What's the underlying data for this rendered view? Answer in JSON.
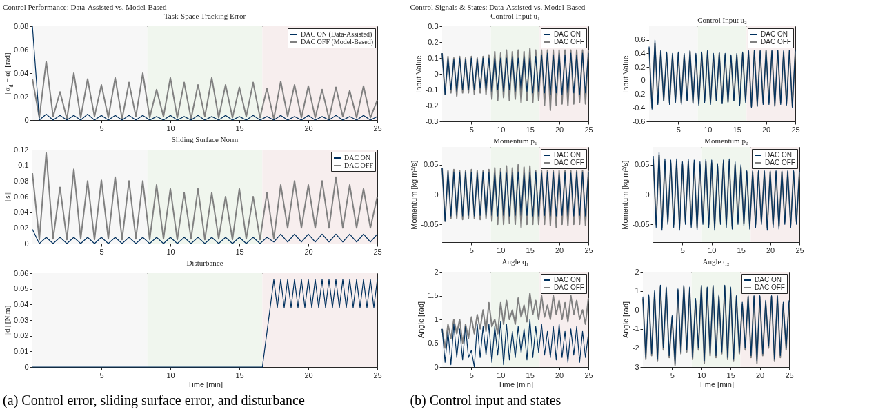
{
  "chart_data": [
    {
      "type": "line",
      "title": "Task-Space Tracking Error",
      "ylabel": "||α$_{d}$ − α|| [rad]",
      "annotations": [
        "Control Performance: Data-Assisted vs. Model-Based",
        "(a) Control error, sliding surface error, and disturbance"
      ],
      "x": [
        0,
        0.5,
        1,
        1.5,
        2,
        2.5,
        3,
        3.5,
        4,
        4.5,
        5,
        5.5,
        6,
        6.5,
        7,
        7.5,
        8,
        8.5,
        9,
        9.5,
        10,
        10.5,
        11,
        11.5,
        12,
        12.5,
        13,
        13.5,
        14,
        14.5,
        15,
        15.5,
        16,
        16.5,
        17,
        17.5,
        18,
        18.5,
        19,
        19.5,
        20,
        20.5,
        21,
        21.5,
        22,
        22.5,
        23,
        23.5,
        24,
        24.5,
        25
      ],
      "xlim": [
        0,
        25
      ],
      "xticks": [
        5,
        10,
        15,
        20,
        25
      ],
      "ylim": [
        0,
        0.08
      ],
      "yticks": [
        0,
        0.02,
        0.04,
        0.06,
        0.08
      ],
      "legend": "top right",
      "bands": [
        {
          "axis": "x",
          "from": 0,
          "to": 8.33,
          "color": "#f7f7f7"
        },
        {
          "axis": "x",
          "from": 8.33,
          "to": 16.67,
          "color": "#f0f6ee"
        },
        {
          "axis": "x",
          "from": 16.67,
          "to": 25,
          "color": "#f7eeee"
        }
      ],
      "series": [
        {
          "name": "DAC ON (Data-Assisted)",
          "color": "#00305e",
          "values": [
            0.08,
            0,
            0.005,
            0,
            0.004,
            0,
            0.004,
            0,
            0.005,
            0,
            0.004,
            0,
            0.004,
            0,
            0.004,
            0,
            0.004,
            0,
            0.003,
            0,
            0.004,
            0,
            0.003,
            0,
            0.004,
            0,
            0.003,
            0,
            0.004,
            0,
            0.003,
            0,
            0.004,
            0,
            0.003,
            0,
            0.004,
            0,
            0.003,
            0,
            0.004,
            0,
            0.003,
            0,
            0.004,
            0,
            0.003,
            0,
            0.004,
            0,
            0.003
          ]
        },
        {
          "name": "DAC OFF (Model-Based)",
          "color": "#808080",
          "values": [
            0.035,
            0.002,
            0.05,
            0.003,
            0.024,
            0.001,
            0.04,
            0.002,
            0.035,
            0.003,
            0.03,
            0.002,
            0.036,
            0.001,
            0.032,
            0.003,
            0.04,
            0.002,
            0.026,
            0.003,
            0.036,
            0.002,
            0.032,
            0.001,
            0.03,
            0.003,
            0.036,
            0.002,
            0.03,
            0.002,
            0.028,
            0.003,
            0.032,
            0.002,
            0.027,
            0.001,
            0.033,
            0.003,
            0.03,
            0.002,
            0.029,
            0.002,
            0.026,
            0.001,
            0.028,
            0.003,
            0.025,
            0.002,
            0.029,
            0.002,
            0.017
          ]
        }
      ]
    },
    {
      "type": "line",
      "title": "Sliding Surface Norm",
      "ylabel": "||s||",
      "x": [
        0,
        0.5,
        1,
        1.5,
        2,
        2.5,
        3,
        3.5,
        4,
        4.5,
        5,
        5.5,
        6,
        6.5,
        7,
        7.5,
        8,
        8.5,
        9,
        9.5,
        10,
        10.5,
        11,
        11.5,
        12,
        12.5,
        13,
        13.5,
        14,
        14.5,
        15,
        15.5,
        16,
        16.5,
        17,
        17.5,
        18,
        18.5,
        19,
        19.5,
        20,
        20.5,
        21,
        21.5,
        22,
        22.5,
        23,
        23.5,
        24,
        24.5,
        25
      ],
      "xlim": [
        0,
        25
      ],
      "xticks": [
        5,
        10,
        15,
        20,
        25
      ],
      "ylim": [
        0,
        0.12
      ],
      "yticks": [
        0,
        0.02,
        0.04,
        0.06,
        0.08,
        0.1,
        0.12
      ],
      "legend": "top right",
      "bands": [
        {
          "axis": "x",
          "from": 0,
          "to": 8.33,
          "color": "#f7f7f7"
        },
        {
          "axis": "x",
          "from": 8.33,
          "to": 16.67,
          "color": "#f0f6ee"
        },
        {
          "axis": "x",
          "from": 16.67,
          "to": 25,
          "color": "#f7eeee"
        }
      ],
      "series": [
        {
          "name": "DAC ON",
          "color": "#00305e",
          "values": [
            0.018,
            0,
            0.008,
            0,
            0.008,
            0,
            0.008,
            0,
            0.008,
            0,
            0.008,
            0,
            0.008,
            0,
            0.008,
            0,
            0.008,
            0,
            0.008,
            0,
            0.008,
            0,
            0.008,
            0,
            0.008,
            0,
            0.008,
            0,
            0.008,
            0,
            0.008,
            0,
            0.008,
            0,
            0.008,
            0.002,
            0.012,
            0.002,
            0.012,
            0.002,
            0.012,
            0.002,
            0.012,
            0.002,
            0.012,
            0.002,
            0.012,
            0.002,
            0.012,
            0.002,
            0.012
          ]
        },
        {
          "name": "DAC OFF",
          "color": "#808080",
          "values": [
            0.09,
            0.005,
            0.116,
            0.006,
            0.072,
            0.005,
            0.095,
            0.006,
            0.08,
            0.005,
            0.081,
            0.006,
            0.085,
            0.005,
            0.08,
            0.006,
            0.08,
            0.005,
            0.075,
            0.006,
            0.07,
            0.005,
            0.065,
            0.006,
            0.07,
            0.005,
            0.065,
            0.006,
            0.06,
            0.005,
            0.07,
            0.006,
            0.06,
            0.005,
            0.065,
            0.006,
            0.075,
            0.02,
            0.08,
            0.02,
            0.075,
            0.02,
            0.08,
            0.02,
            0.085,
            0.02,
            0.075,
            0.02,
            0.07,
            0.02,
            0.06
          ]
        }
      ]
    },
    {
      "type": "line",
      "title": "Disturbance",
      "xlabel": "Time [min]",
      "ylabel": "||d|| [N.m]",
      "xlim": [
        0,
        25
      ],
      "xticks": [
        5,
        10,
        15,
        20,
        25
      ],
      "ylim": [
        0,
        0.06
      ],
      "yticks": [
        0,
        0.01,
        0.02,
        0.03,
        0.04,
        0.05,
        0.06
      ],
      "bands": [
        {
          "axis": "x",
          "from": 0,
          "to": 8.33,
          "color": "#f7f7f7"
        },
        {
          "axis": "x",
          "from": 8.33,
          "to": 16.67,
          "color": "#f0f6ee"
        },
        {
          "axis": "x",
          "from": 16.67,
          "to": 25,
          "color": "#f7eeee"
        }
      ],
      "series": [
        {
          "color": "#00305e",
          "x": [
            0,
            16.67,
            17.5,
            17.75,
            18,
            18.25,
            18.5,
            18.75,
            19,
            19.25,
            19.5,
            19.75,
            20,
            20.25,
            20.5,
            20.75,
            21,
            21.25,
            21.5,
            21.75,
            22,
            22.25,
            22.5,
            22.75,
            23,
            23.25,
            23.5,
            23.75,
            24,
            24.25,
            24.5,
            24.75,
            25
          ],
          "values": [
            0,
            0,
            0.056,
            0.038,
            0.056,
            0.038,
            0.056,
            0.038,
            0.056,
            0.038,
            0.056,
            0.038,
            0.056,
            0.038,
            0.056,
            0.038,
            0.056,
            0.038,
            0.056,
            0.038,
            0.056,
            0.038,
            0.056,
            0.038,
            0.056,
            0.038,
            0.056,
            0.038,
            0.056,
            0.038,
            0.056,
            0.038,
            0.056
          ]
        }
      ]
    },
    {
      "type": "line",
      "title": "Control Input u₁",
      "ylabel": "Input Value",
      "annotations": [
        "Control Signals & States: Data-Assisted vs. Model-Based",
        "(b) Control input and states"
      ],
      "x": [
        0,
        0.5,
        1,
        1.5,
        2,
        2.5,
        3,
        3.5,
        4,
        4.5,
        5,
        5.5,
        6,
        6.5,
        7,
        7.5,
        8,
        8.5,
        9,
        9.5,
        10,
        10.5,
        11,
        11.5,
        12,
        12.5,
        13,
        13.5,
        14,
        14.5,
        15,
        15.5,
        16,
        16.5,
        17,
        17.5,
        18,
        18.5,
        19,
        19.5,
        20,
        20.5,
        21,
        21.5,
        22,
        22.5,
        23,
        23.5,
        24,
        24.5,
        25
      ],
      "xlim": [
        0,
        25
      ],
      "xticks": [
        5,
        10,
        15,
        20,
        25
      ],
      "ylim": [
        -0.3,
        0.3
      ],
      "yticks": [
        -0.3,
        -0.2,
        -0.1,
        0,
        0.1,
        0.2,
        0.3
      ],
      "legend": "top right",
      "bands": [
        {
          "axis": "x",
          "from": 0,
          "to": 8.33,
          "color": "#f7f7f7"
        },
        {
          "axis": "x",
          "from": 8.33,
          "to": 16.67,
          "color": "#f0f6ee"
        },
        {
          "axis": "x",
          "from": 16.67,
          "to": 25,
          "color": "#f7eeee"
        }
      ],
      "series": [
        {
          "name": "DAC ON",
          "color": "#00305e",
          "values": [
            0.13,
            -0.13,
            0.1,
            -0.1,
            0.09,
            -0.11,
            0.1,
            -0.1,
            0.09,
            -0.1,
            0.1,
            -0.1,
            0.09,
            -0.09,
            0.1,
            -0.1,
            0.1,
            -0.11,
            0.1,
            -0.1,
            0.1,
            -0.11,
            0.1,
            -0.1,
            0.11,
            -0.11,
            0.1,
            -0.1,
            0.11,
            -0.11,
            0.1,
            -0.12,
            0.11,
            -0.11,
            0.12,
            -0.12,
            0.13,
            -0.13,
            0.12,
            -0.12,
            0.13,
            -0.13,
            0.12,
            -0.12,
            0.13,
            -0.12,
            0.12,
            -0.13,
            0.13,
            -0.12,
            0.13
          ]
        },
        {
          "name": "DAC OFF",
          "color": "#808080",
          "values": [
            0.13,
            -0.13,
            0.11,
            -0.12,
            0.1,
            -0.14,
            0.11,
            -0.12,
            0.1,
            -0.12,
            0.11,
            -0.13,
            0.1,
            -0.12,
            0.11,
            -0.13,
            0.12,
            -0.16,
            0.14,
            -0.17,
            0.13,
            -0.15,
            0.15,
            -0.17,
            0.14,
            -0.16,
            0.15,
            -0.18,
            0.14,
            -0.17,
            0.16,
            -0.18,
            0.15,
            -0.17,
            0.15,
            -0.2,
            0.15,
            -0.23,
            0.15,
            -0.2,
            0.15,
            -0.19,
            0.15,
            -0.2,
            0.15,
            -0.19,
            0.15,
            -0.18,
            0.15,
            -0.19,
            0.15
          ]
        }
      ]
    },
    {
      "type": "line",
      "title": "Control Input u₂",
      "ylabel": "Input Value",
      "x": [
        0,
        0.5,
        1,
        1.5,
        2,
        2.5,
        3,
        3.5,
        4,
        4.5,
        5,
        5.5,
        6,
        6.5,
        7,
        7.5,
        8,
        8.5,
        9,
        9.5,
        10,
        10.5,
        11,
        11.5,
        12,
        12.5,
        13,
        13.5,
        14,
        14.5,
        15,
        15.5,
        16,
        16.5,
        17,
        17.5,
        18,
        18.5,
        19,
        19.5,
        20,
        20.5,
        21,
        21.5,
        22,
        22.5,
        23,
        23.5,
        24,
        24.5,
        25
      ],
      "xlim": [
        0,
        25
      ],
      "xticks": [
        5,
        10,
        15,
        20,
        25
      ],
      "ylim": [
        -0.6,
        0.8
      ],
      "yticks": [
        -0.6,
        -0.4,
        -0.2,
        0,
        0.2,
        0.4,
        0.6
      ],
      "legend": "top right",
      "bands": [
        {
          "axis": "x",
          "from": 0,
          "to": 8.33,
          "color": "#f7f7f7"
        },
        {
          "axis": "x",
          "from": 8.33,
          "to": 16.67,
          "color": "#f0f6ee"
        },
        {
          "axis": "x",
          "from": 16.67,
          "to": 25,
          "color": "#f7eeee"
        }
      ],
      "series": [
        {
          "name": "DAC ON",
          "color": "#00305e",
          "values": [
            0.5,
            -0.42,
            0.6,
            -0.35,
            0.45,
            -0.3,
            0.42,
            -0.35,
            0.4,
            -0.33,
            0.42,
            -0.35,
            0.4,
            -0.3,
            0.45,
            -0.34,
            0.4,
            -0.36,
            0.42,
            -0.32,
            0.45,
            -0.35,
            0.4,
            -0.3,
            0.42,
            -0.34,
            0.4,
            -0.33,
            0.38,
            -0.3,
            0.4,
            -0.36,
            0.42,
            -0.32,
            0.45,
            -0.4,
            0.45,
            -0.38,
            0.45,
            -0.35,
            0.45,
            -0.35,
            0.45,
            -0.38,
            0.45,
            -0.35,
            0.44,
            -0.36,
            0.45,
            -0.4,
            0.45
          ]
        },
        {
          "name": "DAC OFF",
          "color": "#808080",
          "values": [
            0.48,
            -0.4,
            0.55,
            -0.33,
            0.43,
            -0.29,
            0.4,
            -0.33,
            0.38,
            -0.31,
            0.4,
            -0.33,
            0.38,
            -0.29,
            0.43,
            -0.32,
            0.38,
            -0.34,
            0.4,
            -0.3,
            0.43,
            -0.33,
            0.38,
            -0.29,
            0.4,
            -0.32,
            0.38,
            -0.31,
            0.36,
            -0.29,
            0.38,
            -0.34,
            0.4,
            -0.3,
            0.43,
            -0.38,
            0.44,
            -0.36,
            0.43,
            -0.33,
            0.44,
            -0.33,
            0.43,
            -0.36,
            0.44,
            -0.33,
            0.42,
            -0.34,
            0.44,
            -0.38,
            0.43
          ]
        }
      ]
    },
    {
      "type": "line",
      "title": "Momentum p₁",
      "ylabel": "Momentum [kg m²/s]",
      "x": [
        0,
        0.5,
        1,
        1.5,
        2,
        2.5,
        3,
        3.5,
        4,
        4.5,
        5,
        5.5,
        6,
        6.5,
        7,
        7.5,
        8,
        8.5,
        9,
        9.5,
        10,
        10.5,
        11,
        11.5,
        12,
        12.5,
        13,
        13.5,
        14,
        14.5,
        15,
        15.5,
        16,
        16.5,
        17,
        17.5,
        18,
        18.5,
        19,
        19.5,
        20,
        20.5,
        21,
        21.5,
        22,
        22.5,
        23,
        23.5,
        24,
        24.5,
        25
      ],
      "xlim": [
        0,
        25
      ],
      "xticks": [
        5,
        10,
        15,
        20,
        25
      ],
      "ylim": [
        -0.08,
        0.08
      ],
      "yticks": [
        -0.05,
        0,
        0.05
      ],
      "legend": "top right",
      "bands": [
        {
          "axis": "x",
          "from": 0,
          "to": 8.33,
          "color": "#f7f7f7"
        },
        {
          "axis": "x",
          "from": 8.33,
          "to": 16.67,
          "color": "#f0f6ee"
        },
        {
          "axis": "x",
          "from": 16.67,
          "to": 25,
          "color": "#f7eeee"
        }
      ],
      "series": [
        {
          "name": "DAC ON",
          "color": "#00305e",
          "values": [
            0.045,
            -0.045,
            0.04,
            -0.036,
            0.038,
            -0.035,
            0.037,
            -0.036,
            0.038,
            -0.035,
            0.037,
            -0.036,
            0.036,
            -0.035,
            0.038,
            -0.036,
            0.037,
            -0.035,
            0.036,
            -0.036,
            0.038,
            -0.035,
            0.036,
            -0.036,
            0.037,
            -0.035,
            0.038,
            -0.036,
            0.036,
            -0.035,
            0.037,
            -0.036,
            0.038,
            -0.036,
            0.036,
            -0.035,
            0.037,
            -0.036,
            0.038,
            -0.036,
            0.036,
            -0.035,
            0.037,
            -0.036,
            0.036,
            -0.036,
            0.038,
            -0.035,
            0.037,
            -0.036,
            0.038
          ]
        },
        {
          "name": "DAC OFF",
          "color": "#808080",
          "values": [
            0.045,
            -0.045,
            0.04,
            -0.04,
            0.042,
            -0.04,
            0.04,
            -0.042,
            0.04,
            -0.04,
            0.042,
            -0.04,
            0.04,
            -0.042,
            0.04,
            -0.04,
            0.042,
            -0.045,
            0.045,
            -0.05,
            0.044,
            -0.05,
            0.048,
            -0.048,
            0.045,
            -0.05,
            0.05,
            -0.055,
            0.046,
            -0.05,
            0.048,
            -0.05,
            0.04,
            -0.05,
            0.04,
            -0.05,
            0.04,
            -0.052,
            0.04,
            -0.055,
            0.04,
            -0.05,
            0.04,
            -0.052,
            0.04,
            -0.05,
            0.04,
            -0.05,
            0.04,
            -0.052,
            0.04
          ]
        }
      ]
    },
    {
      "type": "line",
      "title": "Momentum p₂",
      "ylabel": "Momentum [kg m²/s]",
      "x": [
        0,
        0.5,
        1,
        1.5,
        2,
        2.5,
        3,
        3.5,
        4,
        4.5,
        5,
        5.5,
        6,
        6.5,
        7,
        7.5,
        8,
        8.5,
        9,
        9.5,
        10,
        10.5,
        11,
        11.5,
        12,
        12.5,
        13,
        13.5,
        14,
        14.5,
        15,
        15.5,
        16,
        16.5,
        17,
        17.5,
        18,
        18.5,
        19,
        19.5,
        20,
        20.5,
        21,
        21.5,
        22,
        22.5,
        23,
        23.5,
        24,
        24.5,
        25
      ],
      "xlim": [
        0,
        25
      ],
      "xticks": [
        5,
        10,
        15,
        20,
        25
      ],
      "ylim": [
        -0.08,
        0.08
      ],
      "yticks": [
        -0.05,
        0,
        0.05
      ],
      "legend": "top right",
      "bands": [
        {
          "axis": "x",
          "from": 0,
          "to": 8.33,
          "color": "#f7f7f7"
        },
        {
          "axis": "x",
          "from": 8.33,
          "to": 16.67,
          "color": "#f0f6ee"
        },
        {
          "axis": "x",
          "from": 16.67,
          "to": 25,
          "color": "#f7eeee"
        }
      ],
      "series": [
        {
          "name": "DAC ON",
          "color": "#00305e",
          "values": [
            0.065,
            -0.055,
            0.072,
            -0.06,
            0.06,
            -0.05,
            0.058,
            -0.055,
            0.06,
            -0.06,
            0.055,
            -0.05,
            0.06,
            -0.055,
            0.058,
            -0.06,
            0.055,
            -0.05,
            0.06,
            -0.055,
            0.058,
            -0.06,
            0.052,
            -0.05,
            0.058,
            -0.055,
            0.06,
            -0.058,
            0.055,
            -0.05,
            0.05,
            -0.052,
            0.04,
            -0.058,
            0.04,
            -0.055,
            0.04,
            -0.05,
            0.04,
            -0.06,
            0.04,
            -0.055,
            0.04,
            -0.058,
            0.04,
            -0.05,
            0.04,
            -0.056,
            0.04,
            -0.05,
            0.04
          ]
        },
        {
          "name": "DAC OFF",
          "color": "#808080",
          "values": [
            0.06,
            -0.05,
            0.066,
            -0.055,
            0.055,
            -0.046,
            0.053,
            -0.05,
            0.055,
            -0.055,
            0.05,
            -0.046,
            0.055,
            -0.05,
            0.053,
            -0.055,
            0.05,
            -0.046,
            0.055,
            -0.05,
            0.053,
            -0.055,
            0.048,
            -0.046,
            0.053,
            -0.05,
            0.055,
            -0.053,
            0.05,
            -0.046,
            0.046,
            -0.048,
            0.038,
            -0.053,
            0.038,
            -0.05,
            0.038,
            -0.046,
            0.038,
            -0.055,
            0.038,
            -0.05,
            0.038,
            -0.053,
            0.038,
            -0.046,
            0.038,
            -0.051,
            0.038,
            -0.046,
            0.038
          ]
        }
      ]
    },
    {
      "type": "line",
      "title": "Angle q₁",
      "xlabel": "Time [min]",
      "ylabel": "Angle [rad]",
      "x": [
        0,
        0.5,
        1,
        1.5,
        2,
        2.5,
        3,
        3.5,
        4,
        4.5,
        5,
        5.5,
        6,
        6.5,
        7,
        7.5,
        8,
        8.5,
        9,
        9.5,
        10,
        10.5,
        11,
        11.5,
        12,
        12.5,
        13,
        13.5,
        14,
        14.5,
        15,
        15.5,
        16,
        16.5,
        17,
        17.5,
        18,
        18.5,
        19,
        19.5,
        20,
        20.5,
        21,
        21.5,
        22,
        22.5,
        23,
        23.5,
        24,
        24.5,
        25
      ],
      "xlim": [
        0,
        25
      ],
      "xticks": [
        5,
        10,
        15,
        20,
        25
      ],
      "ylim": [
        0,
        2
      ],
      "yticks": [
        0,
        0.5,
        1,
        1.5,
        2
      ],
      "legend": "top right",
      "bands": [
        {
          "axis": "x",
          "from": 0,
          "to": 8.33,
          "color": "#f7f7f7"
        },
        {
          "axis": "x",
          "from": 8.33,
          "to": 16.67,
          "color": "#f0f6ee"
        },
        {
          "axis": "x",
          "from": 16.67,
          "to": 25,
          "color": "#f7eeee"
        }
      ],
      "series": [
        {
          "name": "DAC ON",
          "color": "#00305e",
          "values": [
            0.8,
            0.1,
            0.75,
            0.05,
            0.9,
            0.2,
            0.8,
            0.15,
            0.85,
            0.2,
            0.35,
            0.0,
            0.9,
            0.2,
            0.85,
            0.25,
            0.9,
            0.1,
            0.85,
            0.25,
            0.95,
            0.05,
            0.9,
            0.15,
            0.75,
            0.2,
            0.85,
            0.3,
            0.8,
            0.15,
            1.0,
            0.2,
            0.85,
            0.3,
            0.9,
            0.25,
            0.75,
            0.2,
            0.85,
            0.15,
            0.9,
            0.2,
            0.75,
            0.1,
            0.8,
            0.25,
            0.85,
            0.1,
            0.75,
            0.2,
            0.7
          ]
        },
        {
          "name": "DAC OFF",
          "color": "#808080",
          "values": [
            0.8,
            0.4,
            0.9,
            0.6,
            1.0,
            0.7,
            1.0,
            0.5,
            0.9,
            0.6,
            1.05,
            0.7,
            1.1,
            0.8,
            1.2,
            0.75,
            1.35,
            0.85,
            1.0,
            0.7,
            1.35,
            0.9,
            1.4,
            1.0,
            1.2,
            0.9,
            1.45,
            1.05,
            1.3,
            0.95,
            1.55,
            1.1,
            1.4,
            1.0,
            1.5,
            1.05,
            1.3,
            1.0,
            1.5,
            1.1,
            1.4,
            1.0,
            1.35,
            0.95,
            1.5,
            1.1,
            1.4,
            1.0,
            1.2,
            0.9,
            1.45
          ]
        }
      ]
    },
    {
      "type": "line",
      "title": "Angle q₂",
      "xlabel": "Time [min]",
      "ylabel": "Angle [rad]",
      "x": [
        0,
        0.5,
        1,
        1.5,
        2,
        2.5,
        3,
        3.5,
        4,
        4.5,
        5,
        5.5,
        6,
        6.5,
        7,
        7.5,
        8,
        8.5,
        9,
        9.5,
        10,
        10.5,
        11,
        11.5,
        12,
        12.5,
        13,
        13.5,
        14,
        14.5,
        15,
        15.5,
        16,
        16.5,
        17,
        17.5,
        18,
        18.5,
        19,
        19.5,
        20,
        20.5,
        21,
        21.5,
        22,
        22.5,
        23,
        23.5,
        24,
        24.5,
        25
      ],
      "xlim": [
        0,
        25
      ],
      "xticks": [
        5,
        10,
        15,
        20,
        25
      ],
      "ylim": [
        -3,
        2
      ],
      "yticks": [
        -3,
        -2,
        -1,
        0,
        1,
        2
      ],
      "legend": "top right",
      "bands": [
        {
          "axis": "x",
          "from": 0,
          "to": 8.33,
          "color": "#f7f7f7"
        },
        {
          "axis": "x",
          "from": 8.33,
          "to": 16.67,
          "color": "#f0f6ee"
        },
        {
          "axis": "x",
          "from": 16.67,
          "to": 25,
          "color": "#f7eeee"
        }
      ],
      "series": [
        {
          "name": "DAC ON",
          "color": "#00305e",
          "values": [
            0.7,
            -2.5,
            0.8,
            -2.3,
            1.0,
            -2.6,
            1.3,
            -2.0,
            1.2,
            -2.4,
            -0.3,
            -2.8,
            1.1,
            -2.2,
            1.3,
            -2.1,
            1.2,
            -2.5,
            0.6,
            -2.0,
            1.3,
            -2.7,
            1.2,
            -2.3,
            1.3,
            -2.4,
            0.8,
            -2.2,
            1.3,
            -2.5,
            1.2,
            -2.6,
            0.75,
            -2.2,
            0.4,
            -2.0,
            0.75,
            -2.4,
            0.75,
            -2.7,
            0.75,
            -2.3,
            0.5,
            -1.9,
            0.75,
            -2.6,
            0.75,
            -2.4,
            0.4,
            -2.0,
            0.5
          ]
        },
        {
          "name": "DAC OFF",
          "color": "#808080",
          "values": [
            0.6,
            -2.6,
            0.7,
            -2.4,
            0.9,
            -2.7,
            1.2,
            -2.1,
            1.1,
            -2.5,
            -0.4,
            -2.9,
            1.0,
            -2.3,
            1.2,
            -2.2,
            1.1,
            -2.6,
            0.5,
            -2.1,
            1.2,
            -2.8,
            1.1,
            -2.4,
            1.2,
            -2.5,
            0.7,
            -2.3,
            1.2,
            -2.6,
            1.1,
            -2.7,
            0.7,
            -2.3,
            0.3,
            -2.1,
            0.7,
            -2.5,
            0.7,
            -2.8,
            0.7,
            -2.4,
            0.4,
            -2.0,
            0.7,
            -2.7,
            0.7,
            -2.5,
            0.3,
            -2.1,
            0.4
          ]
        }
      ]
    }
  ]
}
